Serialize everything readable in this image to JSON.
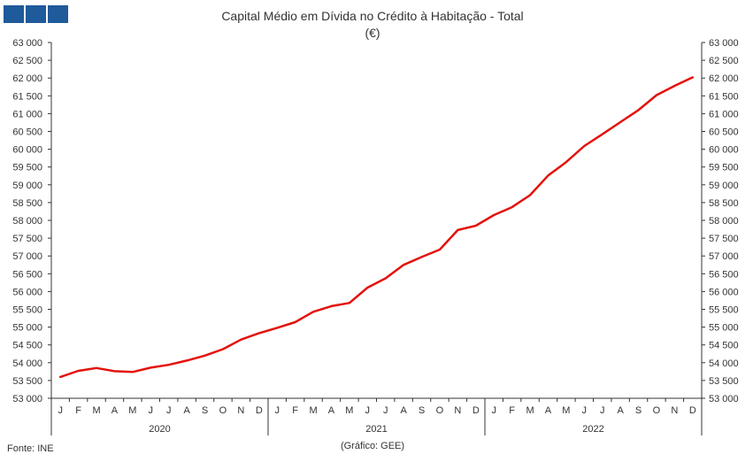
{
  "logo": {
    "colors": [
      "#1f5a9b",
      "#1f5a9b",
      "#1f5a9b"
    ]
  },
  "footer": {
    "source": "Fonte: INE",
    "credit": "(Gráfico: GEE)"
  },
  "chart_data": {
    "type": "line",
    "title": "Capital Médio em Dívida no Crédito à Habitação - Total",
    "subtitle": "(€)",
    "xlabel": "",
    "ylabel": "",
    "ylim": [
      53000,
      63000
    ],
    "y_ticks": [
      "53 000",
      "53 500",
      "54 000",
      "54 500",
      "55 000",
      "55 500",
      "56 000",
      "56 500",
      "57 000",
      "57 500",
      "58 000",
      "58 500",
      "59 000",
      "59 500",
      "60 000",
      "60 500",
      "61 000",
      "61 500",
      "62 000",
      "62 500",
      "63 000"
    ],
    "y_axes": [
      "left",
      "right"
    ],
    "grid": false,
    "categories": [
      "J",
      "F",
      "M",
      "A",
      "M",
      "J",
      "J",
      "A",
      "S",
      "O",
      "N",
      "D",
      "J",
      "F",
      "M",
      "A",
      "M",
      "J",
      "J",
      "A",
      "S",
      "O",
      "N",
      "D",
      "J",
      "F",
      "M",
      "A",
      "M",
      "J",
      "J",
      "A",
      "S",
      "O",
      "N",
      "D"
    ],
    "years": [
      "2020",
      "2021",
      "2022"
    ],
    "series": [
      {
        "color": "#e3120b",
        "values": [
          53600,
          53770,
          53850,
          53760,
          53740,
          53860,
          53940,
          54060,
          54200,
          54380,
          54650,
          54830,
          54980,
          55140,
          55430,
          55590,
          55680,
          56110,
          56370,
          56750,
          56970,
          57180,
          57730,
          57850,
          58150,
          58370,
          58710,
          59260,
          59640,
          60090,
          60420,
          60760,
          61100,
          61520,
          61780,
          62020
        ]
      }
    ]
  }
}
